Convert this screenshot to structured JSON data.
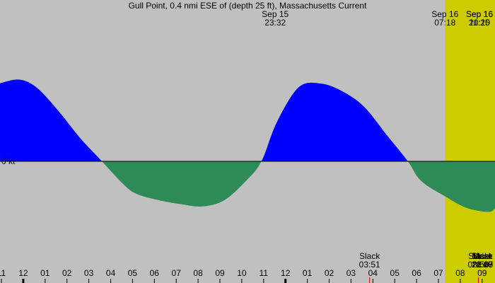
{
  "chart_data": {
    "type": "area",
    "title": "Gull Point, 0.4 nmi ESE of (depth 25 ft), Massachusetts Current",
    "zero_label": "0 kt",
    "colors": {
      "night": "#c0c0c0",
      "day": "#cccc00",
      "flood": "#0000ff",
      "ebb": "#2e8b57",
      "tick_mark": "#cc0000",
      "axis": "#000000"
    },
    "x_start_hour": 10.9,
    "x_end_hour": 33.6,
    "y_unit": "kt",
    "day_period": {
      "start_hour": 31.3,
      "end_hour": 44.17
    },
    "series": [
      {
        "x_hours": [
          10.9,
          11.8,
          12.6,
          13.6,
          14.6,
          15.6,
          16.6,
          17.2,
          18.2,
          19.2,
          20.2,
          21.2,
          22.2,
          22.9,
          23.6,
          24.6,
          25.6,
          26.6,
          27.6,
          28.6,
          29.6,
          30.2,
          31.3,
          32.3,
          33.3,
          33.6
        ],
        "values": [
          1.0,
          1.05,
          0.95,
          0.65,
          0.3,
          0.0,
          -0.3,
          -0.42,
          -0.5,
          -0.55,
          -0.58,
          -0.5,
          -0.25,
          0.0,
          0.5,
          0.95,
          1.0,
          0.9,
          0.7,
          0.35,
          0.0,
          -0.25,
          -0.45,
          -0.6,
          -0.65,
          -0.6
        ]
      }
    ],
    "top_labels": [
      {
        "line1": "Sep 15",
        "line2": "23:32",
        "hour": 23.53
      },
      {
        "line1": "Sep 16",
        "line2": "07:18",
        "hour": 31.3
      },
      {
        "line1": "Sep 16",
        "line2": "11:25",
        "hour": 35.42
      },
      {
        "line1": "Sep 16",
        "line2": "20:10",
        "hour": 44.17
      }
    ],
    "bottom_events": [
      {
        "line1": "Slack",
        "line2": "03:51",
        "hour": 27.85
      },
      {
        "line1": "Slack",
        "line2": "08:50",
        "hour": 32.83
      },
      {
        "line1": "Mrise",
        "line2": "12:29",
        "hour": 36.48
      },
      {
        "line1": "Slack",
        "line2": "16:07",
        "hour": 40.12
      },
      {
        "line1": "Mset",
        "line2": "21:18",
        "hour": 45.3
      }
    ],
    "hour_ticks": [
      "11",
      "12",
      "01",
      "02",
      "03",
      "04",
      "05",
      "06",
      "07",
      "08",
      "09",
      "10",
      "11",
      "12",
      "01",
      "02",
      "03",
      "04",
      "05",
      "06",
      "07",
      "08",
      "09"
    ],
    "hour_tick_start": 11
  }
}
